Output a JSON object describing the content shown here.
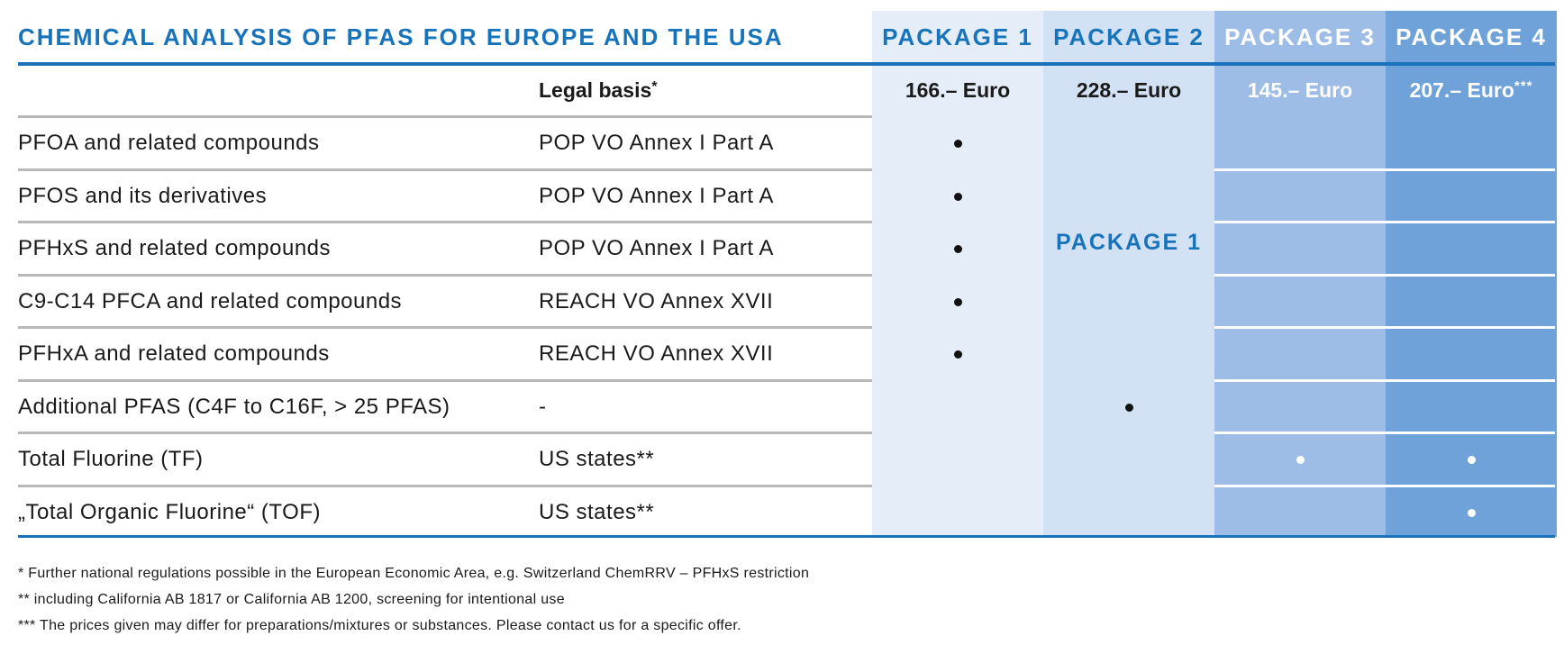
{
  "title": "CHEMICAL ANALYSIS OF PFAS FOR EUROPE AND THE USA",
  "packages": [
    {
      "label": "PACKAGE 1",
      "price": "166.– Euro",
      "price_note": ""
    },
    {
      "label": "PACKAGE 2",
      "price": "228.– Euro",
      "price_note": ""
    },
    {
      "label": "PACKAGE 3",
      "price": "145.– Euro",
      "price_note": ""
    },
    {
      "label": "PACKAGE 4",
      "price": "207.– Euro",
      "price_note": "***"
    }
  ],
  "legal_header": {
    "label": "Legal basis",
    "note": "*"
  },
  "package2_includes": "PACKAGE 1",
  "rows": [
    {
      "name": "PFOA and related compounds",
      "legal": "POP VO Annex I Part A",
      "marks": [
        true,
        false,
        false,
        false
      ]
    },
    {
      "name": "PFOS and its derivatives",
      "legal": "POP VO Annex I Part A",
      "marks": [
        true,
        false,
        false,
        false
      ]
    },
    {
      "name": "PFHxS and related compounds",
      "legal": "POP VO Annex I Part A",
      "marks": [
        true,
        false,
        false,
        false
      ]
    },
    {
      "name": "C9-C14 PFCA and related compounds",
      "legal": "REACH VO Annex XVII",
      "marks": [
        true,
        false,
        false,
        false
      ]
    },
    {
      "name": "PFHxA and related compounds",
      "legal": "REACH VO Annex XVII",
      "marks": [
        true,
        false,
        false,
        false
      ]
    },
    {
      "name": "Additional PFAS (C4F to C16F, > 25 PFAS)",
      "legal": "-",
      "marks": [
        false,
        true,
        false,
        false
      ]
    },
    {
      "name": "Total Fluorine (TF)",
      "legal": "US states**",
      "marks": [
        false,
        false,
        true,
        true
      ]
    },
    {
      "name": "„Total Organic Fluorine“ (TOF)",
      "legal": "US states**",
      "marks": [
        false,
        false,
        false,
        true
      ]
    }
  ],
  "footnotes": [
    "* Further national regulations possible in the European Economic Area, e.g. Switzerland ChemRRV – PFHxS restriction",
    "** including California AB 1817 or California AB 1200, screening for intentional use",
    "*** The prices given may differ for preparations/mixtures or substances. Please contact us for a specific offer."
  ],
  "colors": {
    "accent_blue": "#1774bb",
    "package1_bg": "#e4edf8",
    "package2_bg": "#d3e1f4",
    "package3_bg": "#9ebde6",
    "package4_bg": "#6fa2d8"
  }
}
